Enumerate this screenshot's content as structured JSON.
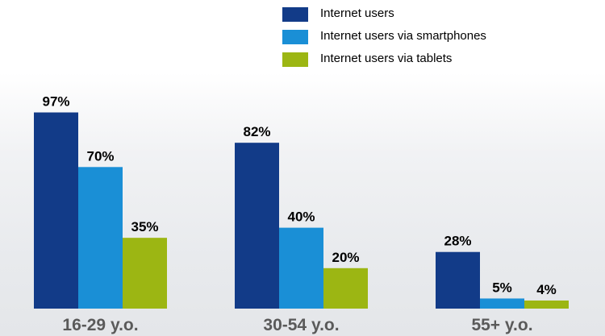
{
  "chart_data": {
    "type": "bar",
    "categories": [
      "16-29 y.o.",
      "30-54 y.o.",
      "55+ y.o."
    ],
    "series": [
      {
        "name": "Internet users",
        "values": [
          97,
          82,
          28
        ],
        "labels": [
          "97%",
          "82%",
          "28%"
        ],
        "color": "#123b88"
      },
      {
        "name": "Internet users via smartphones",
        "values": [
          70,
          40,
          5
        ],
        "labels": [
          "70%",
          "40%",
          "5%"
        ],
        "color": "#1a8fd6"
      },
      {
        "name": "Internet users via tablets",
        "values": [
          35,
          20,
          4
        ],
        "labels": [
          "35%",
          "20%",
          "4%"
        ],
        "color": "#9cb613"
      }
    ],
    "unit": "%",
    "ylim": [
      0,
      100
    ],
    "grid": false,
    "legend_position": "top",
    "title": "",
    "xlabel": "",
    "ylabel": ""
  }
}
